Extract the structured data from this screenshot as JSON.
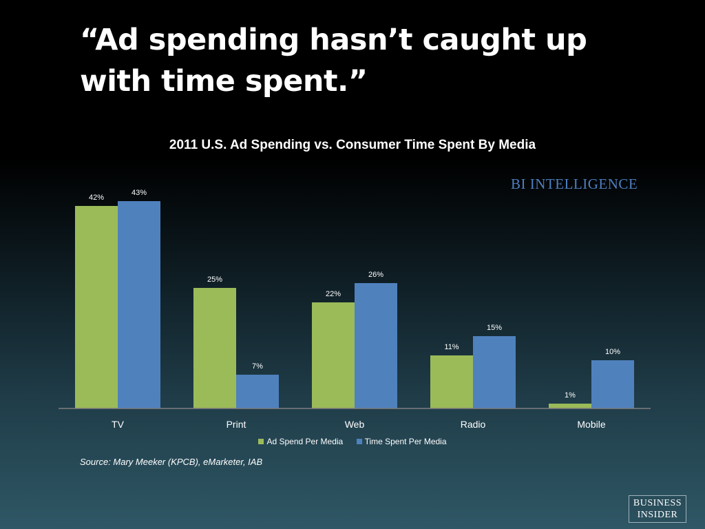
{
  "headline": "“Ad spending hasn’t caught up with time spent.”",
  "brand": "BI INTELLIGENCE",
  "source": "Source: Mary Meeker (KPCB), eMarketer, IAB",
  "logo": {
    "line1": "BUSINESS",
    "line2": "INSIDER"
  },
  "chart_data": {
    "type": "bar",
    "title": "2011 U.S. Ad Spending vs. Consumer Time Spent By Media",
    "categories": [
      "TV",
      "Print",
      "Web",
      "Radio",
      "Mobile"
    ],
    "series": [
      {
        "name": "Ad Spend Per Media",
        "values": [
          42,
          25,
          22,
          11,
          1
        ],
        "labels": [
          "42%",
          "25%",
          "22%",
          "11%",
          "1%"
        ],
        "color": "#9bbb59"
      },
      {
        "name": "Time Spent Per Media",
        "values": [
          43,
          7,
          26,
          15,
          10
        ],
        "labels": [
          "43%",
          "7%",
          "26%",
          "15%",
          "10%"
        ],
        "color": "#4f81bd"
      }
    ],
    "ylim": [
      0,
      43
    ],
    "axis_color": "#7f7f7f",
    "grid": false,
    "legend": "bottom"
  }
}
